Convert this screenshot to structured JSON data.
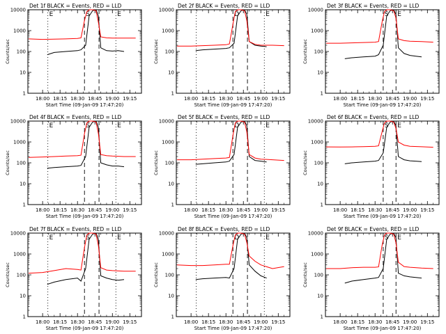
{
  "figure": {
    "ylabel": "Counts/sec",
    "xlabel": "Start Time (09-Jan-09 17:47:20)",
    "y_ticks": [
      "1",
      "10",
      "100",
      "1000",
      "10000"
    ],
    "x_ticks": [
      "18:00",
      "18:15",
      "18:30",
      "18:45",
      "19:00",
      "19:15"
    ],
    "colors": {
      "events": "#000000",
      "lld": "#ff0000",
      "axes": "#000000"
    }
  },
  "chart_data": [
    {
      "type": "line",
      "title": "Det 1f BLACK = Events, RED = LLD",
      "ylim": [
        1,
        10000
      ],
      "yscale": "log",
      "xlim": [
        "17:47:20",
        "19:25:00"
      ],
      "markers": {
        "vlines_dotted": [
          "18:04:30",
          "19:03:00"
        ],
        "vlines_dashed": [
          "18:36:00",
          "18:48:30"
        ],
        "labels": [
          "E",
          "S",
          "E"
        ]
      },
      "series": [
        {
          "name": "BLACK = Events",
          "x": [
            "18:04",
            "18:10",
            "18:20",
            "18:30",
            "18:33",
            "18:37",
            "18:40",
            "18:43",
            "18:46",
            "18:48",
            "18:50",
            "18:55",
            "19:00",
            "19:05",
            "19:10"
          ],
          "values": [
            70,
            90,
            100,
            110,
            120,
            200,
            5000,
            9000,
            10000,
            5000,
            150,
            110,
            105,
            110,
            100
          ]
        },
        {
          "name": "RED = LLD",
          "x": [
            "17:48",
            "18:00",
            "18:10",
            "18:20",
            "18:30",
            "18:33",
            "18:36",
            "18:38",
            "18:40",
            "18:43",
            "18:46",
            "18:48",
            "18:50",
            "18:55",
            "19:00",
            "19:10",
            "19:20"
          ],
          "values": [
            400,
            380,
            390,
            400,
            420,
            450,
            3000,
            8000,
            10000,
            10000,
            9000,
            2500,
            500,
            450,
            440,
            440,
            440
          ]
        }
      ]
    },
    {
      "type": "line",
      "title": "Det 2f BLACK = Events, RED = LLD",
      "ylim": [
        1,
        10000
      ],
      "yscale": "log",
      "xlim": [
        "17:47:20",
        "19:25:00"
      ],
      "markers": {
        "vlines_dotted": [
          "18:04:30",
          "19:03:00"
        ],
        "vlines_dashed": [
          "18:36:00",
          "18:48:30"
        ],
        "labels": [
          "D",
          "E"
        ]
      },
      "series": [
        {
          "name": "BLACK = Events",
          "x": [
            "18:04",
            "18:10",
            "18:20",
            "18:30",
            "18:33",
            "18:37",
            "18:40",
            "18:43",
            "18:46",
            "18:48",
            "18:50",
            "18:55",
            "19:00",
            "19:05"
          ],
          "values": [
            110,
            120,
            130,
            140,
            150,
            250,
            5000,
            9000,
            10000,
            6000,
            300,
            200,
            180,
            170
          ]
        },
        {
          "name": "RED = LLD",
          "x": [
            "17:48",
            "18:00",
            "18:10",
            "18:20",
            "18:30",
            "18:33",
            "18:36",
            "18:38",
            "18:40",
            "18:43",
            "18:46",
            "18:48",
            "18:50",
            "18:55",
            "19:00",
            "19:10",
            "19:20"
          ],
          "values": [
            180,
            180,
            190,
            200,
            210,
            230,
            2000,
            8000,
            10000,
            10000,
            9000,
            3000,
            300,
            220,
            200,
            200,
            190
          ]
        }
      ]
    },
    {
      "type": "line",
      "title": "Det 3f BLACK = Events, RED = LLD",
      "ylim": [
        1,
        10000
      ],
      "yscale": "log",
      "xlim": [
        "17:47:20",
        "19:25:00"
      ],
      "markers": {
        "vlines_dotted": [],
        "vlines_dashed": [
          "18:37:00",
          "18:48:00"
        ],
        "labels": [
          "S",
          "E"
        ]
      },
      "series": [
        {
          "name": "BLACK = Events",
          "x": [
            "18:04",
            "18:10",
            "18:20",
            "18:30",
            "18:33",
            "18:37",
            "18:40",
            "18:43",
            "18:46",
            "18:48",
            "18:50",
            "18:55",
            "19:00",
            "19:05",
            "19:10"
          ],
          "values": [
            45,
            50,
            55,
            60,
            70,
            200,
            5000,
            9000,
            10000,
            6000,
            150,
            80,
            65,
            60,
            55
          ]
        },
        {
          "name": "RED = LLD",
          "x": [
            "17:48",
            "18:00",
            "18:10",
            "18:20",
            "18:30",
            "18:33",
            "18:36",
            "18:38",
            "18:40",
            "18:43",
            "18:46",
            "18:48",
            "18:50",
            "18:55",
            "19:00",
            "19:10",
            "19:20"
          ],
          "values": [
            250,
            250,
            260,
            270,
            280,
            300,
            2500,
            8000,
            10000,
            10000,
            9000,
            4000,
            400,
            330,
            310,
            300,
            280
          ]
        }
      ]
    },
    {
      "type": "line",
      "title": "Det 4f BLACK = Events, RED = LLD",
      "ylim": [
        1,
        10000
      ],
      "yscale": "log",
      "xlim": [
        "17:47:20",
        "19:25:00"
      ],
      "markers": {
        "vlines_dotted": [
          "18:04:30",
          "19:03:00"
        ],
        "vlines_dashed": [
          "18:36:00",
          "18:48:30"
        ],
        "labels": [
          "E",
          "S",
          "E"
        ]
      },
      "series": [
        {
          "name": "BLACK = Events",
          "x": [
            "18:04",
            "18:10",
            "18:20",
            "18:30",
            "18:33",
            "18:37",
            "18:40",
            "18:43",
            "18:46",
            "18:48",
            "18:50",
            "18:55",
            "19:00",
            "19:05",
            "19:10"
          ],
          "values": [
            55,
            60,
            65,
            70,
            75,
            200,
            5000,
            9000,
            10000,
            5000,
            100,
            80,
            70,
            70,
            65
          ]
        },
        {
          "name": "RED = LLD",
          "x": [
            "17:48",
            "18:00",
            "18:10",
            "18:20",
            "18:30",
            "18:33",
            "18:36",
            "18:38",
            "18:40",
            "18:43",
            "18:46",
            "18:48",
            "18:50",
            "18:55",
            "19:00",
            "19:10",
            "19:20"
          ],
          "values": [
            180,
            190,
            200,
            210,
            220,
            230,
            2500,
            8000,
            10000,
            10000,
            9000,
            2500,
            250,
            220,
            210,
            200,
            200
          ]
        }
      ]
    },
    {
      "type": "line",
      "title": "Det 5f BLACK = Events, RED = LLD",
      "ylim": [
        1,
        10000
      ],
      "yscale": "log",
      "xlim": [
        "17:47:20",
        "19:25:00"
      ],
      "markers": {
        "vlines_dotted": [
          "18:04:30",
          "19:03:00"
        ],
        "vlines_dashed": [
          "18:36:00",
          "18:48:30"
        ],
        "labels": [
          "D",
          "E"
        ]
      },
      "series": [
        {
          "name": "BLACK = Events",
          "x": [
            "18:04",
            "18:10",
            "18:20",
            "18:30",
            "18:33",
            "18:37",
            "18:40",
            "18:43",
            "18:46",
            "18:48",
            "18:50",
            "18:55",
            "19:00",
            "19:05"
          ],
          "values": [
            85,
            90,
            100,
            110,
            120,
            250,
            5000,
            9000,
            10000,
            6000,
            200,
            130,
            120,
            110
          ]
        },
        {
          "name": "RED = LLD",
          "x": [
            "17:48",
            "18:00",
            "18:10",
            "18:20",
            "18:30",
            "18:33",
            "18:36",
            "18:38",
            "18:40",
            "18:43",
            "18:46",
            "18:48",
            "18:50",
            "18:55",
            "19:00",
            "19:10",
            "19:20"
          ],
          "values": [
            140,
            140,
            150,
            160,
            170,
            180,
            2000,
            8000,
            10000,
            10000,
            9000,
            3000,
            250,
            170,
            150,
            140,
            130
          ]
        }
      ]
    },
    {
      "type": "line",
      "title": "Det 6f BLACK = Events, RED = LLD",
      "ylim": [
        1,
        10000
      ],
      "yscale": "log",
      "xlim": [
        "17:47:20",
        "19:25:00"
      ],
      "markers": {
        "vlines_dotted": [],
        "vlines_dashed": [
          "18:37:00",
          "18:48:00"
        ],
        "labels": [
          "S",
          "E"
        ]
      },
      "series": [
        {
          "name": "BLACK = Events",
          "x": [
            "18:04",
            "18:10",
            "18:20",
            "18:30",
            "18:33",
            "18:37",
            "18:40",
            "18:43",
            "18:46",
            "18:48",
            "18:50",
            "18:55",
            "19:00",
            "19:05",
            "19:10"
          ],
          "values": [
            90,
            100,
            110,
            120,
            130,
            300,
            5000,
            9000,
            10000,
            6000,
            200,
            140,
            125,
            120,
            115
          ]
        },
        {
          "name": "RED = LLD",
          "x": [
            "17:48",
            "18:00",
            "18:10",
            "18:20",
            "18:30",
            "18:33",
            "18:36",
            "18:38",
            "18:40",
            "18:43",
            "18:46",
            "18:48",
            "18:50",
            "18:55",
            "19:00",
            "19:10",
            "19:20"
          ],
          "values": [
            580,
            570,
            580,
            600,
            620,
            650,
            3000,
            8000,
            10000,
            10000,
            9000,
            4500,
            1000,
            700,
            620,
            590,
            560
          ]
        }
      ]
    },
    {
      "type": "line",
      "title": "Det 7f BLACK = Events, RED = LLD",
      "ylim": [
        1,
        10000
      ],
      "yscale": "log",
      "xlim": [
        "17:47:20",
        "19:25:00"
      ],
      "markers": {
        "vlines_dotted": [
          "18:04:30",
          "19:03:00"
        ],
        "vlines_dashed": [
          "18:36:00",
          "18:48:30"
        ],
        "labels": [
          "E",
          "S",
          "E"
        ]
      },
      "series": [
        {
          "name": "BLACK = Events",
          "x": [
            "18:04",
            "18:10",
            "18:20",
            "18:30",
            "18:33",
            "18:37",
            "18:40",
            "18:43",
            "18:46",
            "18:48",
            "18:50",
            "18:55",
            "19:00",
            "19:05",
            "19:10"
          ],
          "values": [
            35,
            45,
            60,
            70,
            50,
            200,
            5000,
            9000,
            10000,
            5000,
            90,
            70,
            60,
            55,
            60
          ]
        },
        {
          "name": "RED = LLD",
          "x": [
            "17:48",
            "18:00",
            "18:10",
            "18:20",
            "18:30",
            "18:33",
            "18:36",
            "18:38",
            "18:40",
            "18:43",
            "18:46",
            "18:48",
            "18:50",
            "18:55",
            "19:00",
            "19:10",
            "19:20"
          ],
          "values": [
            120,
            130,
            160,
            200,
            180,
            170,
            2000,
            8000,
            10000,
            10000,
            9000,
            2500,
            220,
            170,
            160,
            150,
            150
          ]
        }
      ]
    },
    {
      "type": "line",
      "title": "Det 8f BLACK = Events, RED = LLD",
      "ylim": [
        1,
        10000
      ],
      "yscale": "log",
      "xlim": [
        "17:47:20",
        "19:25:00"
      ],
      "markers": {
        "vlines_dotted": [
          "18:04:30",
          "19:03:00"
        ],
        "vlines_dashed": [
          "18:36:00",
          "18:48:30"
        ],
        "labels": [
          "D",
          "E"
        ]
      },
      "series": [
        {
          "name": "BLACK = Events",
          "x": [
            "18:04",
            "18:10",
            "18:20",
            "18:30",
            "18:33",
            "18:37",
            "18:40",
            "18:43",
            "18:46",
            "18:48",
            "18:50",
            "18:55",
            "19:00",
            "19:05"
          ],
          "values": [
            60,
            65,
            70,
            75,
            70,
            200,
            5000,
            9000,
            10000,
            6000,
            300,
            150,
            90,
            70
          ]
        },
        {
          "name": "RED = LLD",
          "x": [
            "17:48",
            "18:00",
            "18:10",
            "18:20",
            "18:30",
            "18:33",
            "18:36",
            "18:38",
            "18:40",
            "18:43",
            "18:46",
            "18:48",
            "18:50",
            "18:55",
            "19:00",
            "19:10",
            "19:20"
          ],
          "values": [
            300,
            280,
            280,
            300,
            320,
            320,
            2500,
            8000,
            10000,
            10000,
            9000,
            3500,
            800,
            450,
            300,
            200,
            250
          ]
        }
      ]
    },
    {
      "type": "line",
      "title": "Det 9f BLACK = Events, RED = LLD",
      "ylim": [
        1,
        10000
      ],
      "yscale": "log",
      "xlim": [
        "17:47:20",
        "19:25:00"
      ],
      "markers": {
        "vlines_dotted": [],
        "vlines_dashed": [
          "18:37:00",
          "18:48:00"
        ],
        "labels": [
          "S",
          "E"
        ]
      },
      "series": [
        {
          "name": "BLACK = Events",
          "x": [
            "18:04",
            "18:10",
            "18:20",
            "18:30",
            "18:33",
            "18:37",
            "18:40",
            "18:43",
            "18:46",
            "18:48",
            "18:50",
            "18:55",
            "19:00",
            "19:05",
            "19:10"
          ],
          "values": [
            40,
            50,
            60,
            70,
            75,
            200,
            5000,
            9000,
            10000,
            6000,
            120,
            90,
            80,
            75,
            70
          ]
        },
        {
          "name": "RED = LLD",
          "x": [
            "17:48",
            "18:00",
            "18:10",
            "18:20",
            "18:30",
            "18:33",
            "18:36",
            "18:38",
            "18:40",
            "18:43",
            "18:46",
            "18:48",
            "18:50",
            "18:55",
            "19:00",
            "19:10",
            "19:20"
          ],
          "values": [
            200,
            200,
            220,
            230,
            230,
            240,
            2500,
            8000,
            10000,
            10000,
            9000,
            3500,
            400,
            250,
            230,
            210,
            200
          ]
        }
      ]
    }
  ]
}
